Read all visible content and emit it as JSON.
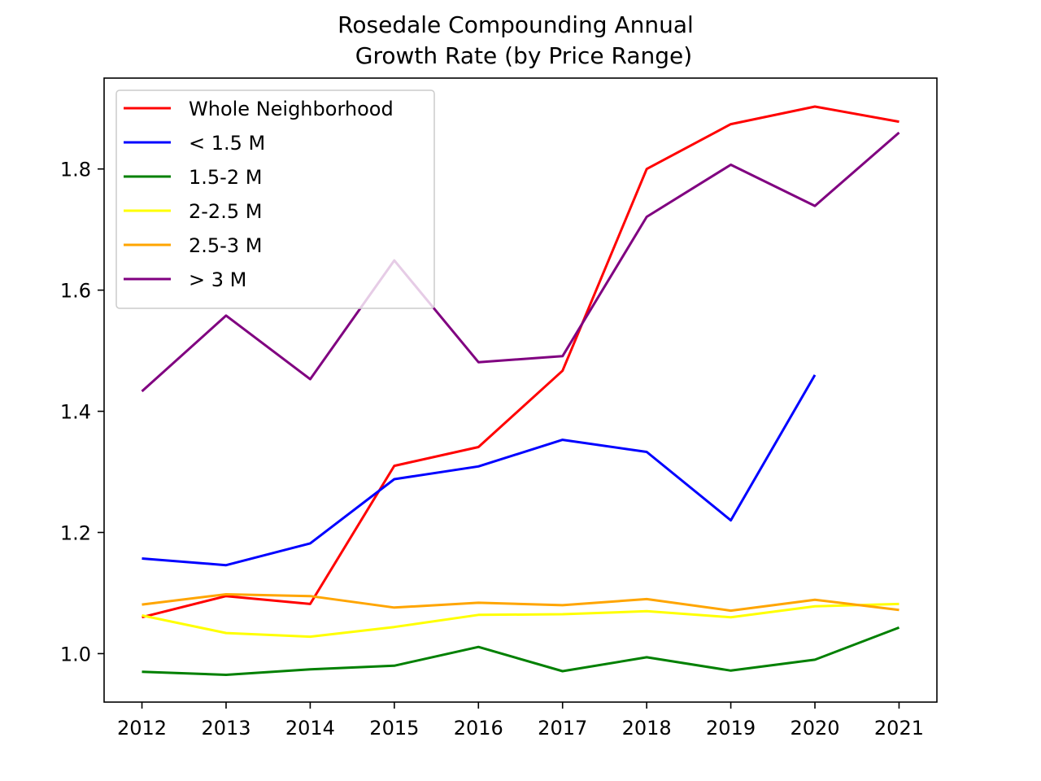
{
  "chart_data": {
    "type": "line",
    "title_lines": [
      "Rosedale Compounding Annual",
      "Growth Rate (by Price Range)"
    ],
    "xlabel": "",
    "ylabel": "",
    "x": [
      2012,
      2013,
      2014,
      2015,
      2016,
      2017,
      2018,
      2019,
      2020,
      2021
    ],
    "x_tick_labels": [
      "2012",
      "2013",
      "2014",
      "2015",
      "2016",
      "2017",
      "2018",
      "2019",
      "2020",
      "2021"
    ],
    "xlim": [
      2011.55,
      2021.45
    ],
    "ylim": [
      0.92,
      1.95
    ],
    "y_ticks": [
      1.0,
      1.2,
      1.4,
      1.6,
      1.8
    ],
    "y_tick_labels": [
      "1.0",
      "1.2",
      "1.4",
      "1.6",
      "1.8"
    ],
    "grid": false,
    "legend_position": "top-left",
    "series": [
      {
        "name": "Whole Neighborhood",
        "color": "#ff0000",
        "values": [
          1.06,
          1.095,
          1.082,
          1.31,
          1.341,
          1.467,
          1.8,
          1.874,
          1.903,
          1.878
        ]
      },
      {
        "name": "< 1.5 M",
        "color": "#0000ff",
        "values": [
          1.157,
          1.146,
          1.182,
          1.288,
          1.309,
          1.353,
          1.333,
          1.22,
          1.46,
          null
        ]
      },
      {
        "name": "1.5-2 M",
        "color": "#008000",
        "values": [
          0.97,
          0.965,
          0.974,
          0.98,
          1.011,
          0.971,
          0.994,
          0.972,
          0.99,
          1.043
        ]
      },
      {
        "name": "2-2.5 M",
        "color": "#ffff00",
        "values": [
          1.063,
          1.034,
          1.028,
          1.044,
          1.064,
          1.065,
          1.07,
          1.06,
          1.078,
          1.082
        ]
      },
      {
        "name": "2.5-3 M",
        "color": "#ffa500",
        "values": [
          1.081,
          1.098,
          1.095,
          1.076,
          1.084,
          1.08,
          1.09,
          1.071,
          1.089,
          1.072
        ]
      },
      {
        "name": "> 3 M",
        "color": "#800080",
        "values": [
          1.433,
          1.558,
          1.453,
          1.649,
          1.481,
          1.491,
          1.721,
          1.807,
          1.739,
          1.86
        ]
      }
    ]
  }
}
